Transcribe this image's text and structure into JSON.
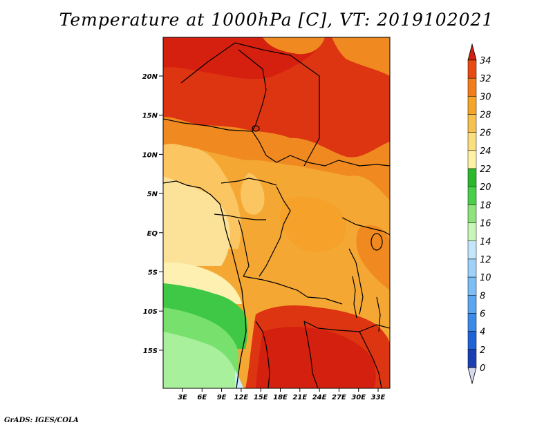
{
  "title": "Temperature at 1000hPa [C], VT: 2019102021",
  "credit": "GrADS: IGES/COLA",
  "map": {
    "variable": "Temperature at 1000hPa",
    "units": "C",
    "valid_time": "2019102021",
    "lat_labels": [
      "20N",
      "15N",
      "10N",
      "5N",
      "EQ",
      "5S",
      "10S",
      "15S"
    ],
    "lon_labels": [
      "3E",
      "6E",
      "9E",
      "12E",
      "15E",
      "18E",
      "21E",
      "24E",
      "27E",
      "30E",
      "33E"
    ]
  },
  "colorbar": {
    "labels": [
      "0",
      "2",
      "4",
      "6",
      "8",
      "10",
      "12",
      "14",
      "16",
      "18",
      "20",
      "22",
      "24",
      "26",
      "28",
      "30",
      "32",
      "34"
    ],
    "colors": [
      "#0d0d6e",
      "#1a3fb3",
      "#1e63d6",
      "#3a8ae8",
      "#5aa6f0",
      "#7cbef5",
      "#9fd2f9",
      "#c4e6fc",
      "#c8f5b8",
      "#8ee37a",
      "#49cf49",
      "#2cb82c",
      "#fff2a6",
      "#fadf7e",
      "#f7c150",
      "#f5a52a",
      "#f27d1a",
      "#e84b12",
      "#d11f10"
    ],
    "under_color": "#d8d8ef"
  },
  "legend_colors": {
    "hot": "#d9250f",
    "warm": "#f19a22",
    "mild": "#f9dc8a",
    "cool": "#a6f09c",
    "green": "#3ec845"
  }
}
